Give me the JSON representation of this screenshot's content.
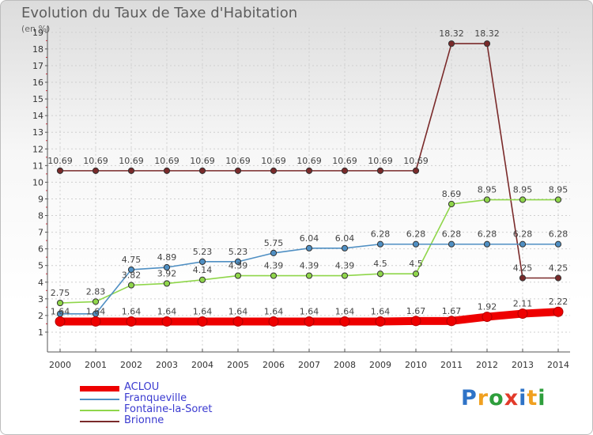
{
  "title": "Evolution du Taux de Taxe d'Habitation",
  "subtitle": "(en %)",
  "brand": "Proxiti",
  "chart_data": {
    "type": "line",
    "x": [
      "2000",
      "2001",
      "2002",
      "2003",
      "2004",
      "2005",
      "2006",
      "2007",
      "2008",
      "2009",
      "2010",
      "2011",
      "2012",
      "2013",
      "2014"
    ],
    "ylim": [
      1,
      19
    ],
    "yticks": [
      "1",
      "2",
      "3",
      "4",
      "5",
      "6",
      "7",
      "8",
      "9",
      "10",
      "11",
      "12",
      "13",
      "14",
      "15",
      "16",
      "17",
      "18",
      "19"
    ],
    "grid": true,
    "legend_position": "bottom-left",
    "series": [
      {
        "name": "ACLOU",
        "color": "#ee0000",
        "values": [
          1.64,
          1.64,
          1.64,
          1.64,
          1.64,
          1.64,
          1.64,
          1.64,
          1.64,
          1.64,
          1.67,
          1.67,
          1.92,
          2.11,
          2.22
        ],
        "labels": [
          "1.64",
          "1.64",
          "1.64",
          "1.64",
          "1.64",
          "1.64",
          "1.64",
          "1.64",
          "1.64",
          "1.64",
          "1.67",
          "1.67",
          "1.92",
          "2.11",
          "2.22"
        ]
      },
      {
        "name": "Franqueville",
        "color": "#4f8fc3",
        "values": [
          2.1,
          2.1,
          4.75,
          4.89,
          5.23,
          5.23,
          5.75,
          6.04,
          6.04,
          6.28,
          6.28,
          6.28,
          6.28,
          6.28,
          6.28
        ],
        "labels": [
          "",
          "",
          "4.75",
          "4.89",
          "5.23",
          "5.23",
          "5.75",
          "6.04",
          "6.04",
          "6.28",
          "6.28",
          "6.28",
          "6.28",
          "6.28",
          "6.28"
        ]
      },
      {
        "name": "Fontaine-la-Soret",
        "color": "#8fd64a",
        "values": [
          2.75,
          2.83,
          3.82,
          3.92,
          4.14,
          4.39,
          4.39,
          4.39,
          4.39,
          4.5,
          4.5,
          8.69,
          8.95,
          8.95,
          8.95
        ],
        "labels": [
          "2.75",
          "2.83",
          "3.82",
          "3.92",
          "4.14",
          "4.39",
          "4.39",
          "4.39",
          "4.39",
          "4.5",
          "4.5",
          "8.69",
          "8.95",
          "8.95",
          "8.95"
        ]
      },
      {
        "name": "Brionne",
        "color": "#7a2a2a",
        "values": [
          10.69,
          10.69,
          10.69,
          10.69,
          10.69,
          10.69,
          10.69,
          10.69,
          10.69,
          10.69,
          10.69,
          18.32,
          18.32,
          4.25,
          4.25
        ],
        "labels": [
          "10.69",
          "10.69",
          "10.69",
          "10.69",
          "10.69",
          "10.69",
          "10.69",
          "10.69",
          "10.69",
          "10.69",
          "10.69",
          "18.32",
          "18.32",
          "4.25",
          "4.25"
        ]
      }
    ]
  }
}
